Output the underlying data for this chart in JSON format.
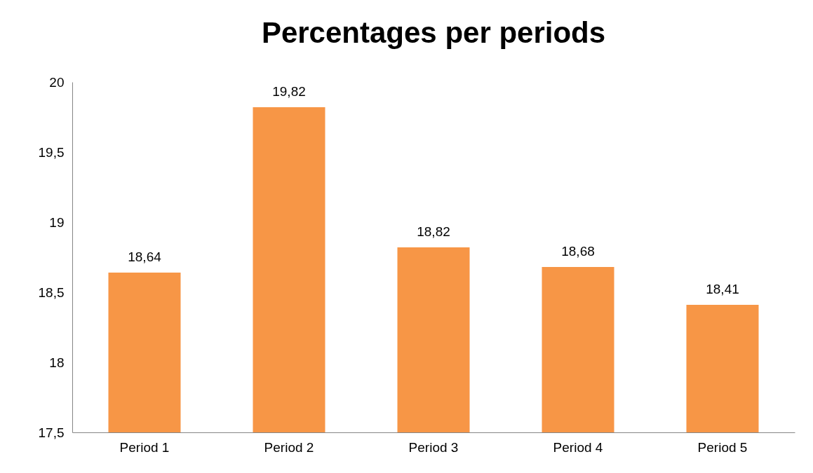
{
  "chart_data": {
    "type": "bar",
    "title": "Percentages per periods",
    "categories": [
      "Period 1",
      "Period 2",
      "Period 3",
      "Period 4",
      "Period 5"
    ],
    "values": [
      18.64,
      19.82,
      18.82,
      18.68,
      18.41
    ],
    "value_labels": [
      "18,64",
      "19,82",
      "18,82",
      "18,68",
      "18,41"
    ],
    "color": "#f79646",
    "ylim": [
      17.5,
      20
    ],
    "yticks": [
      {
        "value": 17.5,
        "label": "17,5"
      },
      18,
      {
        "value": 18.5,
        "label": "18,5"
      },
      19,
      {
        "value": 19.5,
        "label": "19,5"
      },
      20
    ],
    "grid": false
  }
}
